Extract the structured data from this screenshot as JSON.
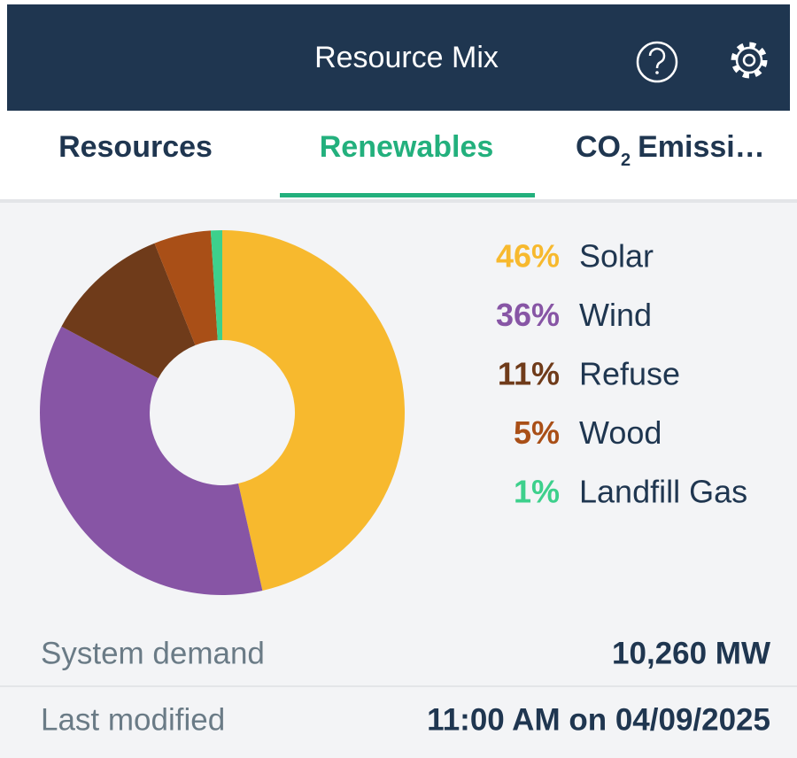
{
  "header": {
    "title": "Resource Mix"
  },
  "tabs": [
    {
      "label": "Resources"
    },
    {
      "label": "Renewables"
    },
    {
      "label": "CO",
      "sub": "2",
      "rest": "Emissi…"
    }
  ],
  "chart_data": {
    "type": "pie",
    "donut": true,
    "categories": [
      "Solar",
      "Wind",
      "Refuse",
      "Wood",
      "Landfill Gas"
    ],
    "values": [
      46,
      36,
      11,
      5,
      1
    ],
    "value_labels": [
      "46%",
      "36%",
      "11%",
      "5%",
      "1%"
    ],
    "colors": [
      "#f7b92e",
      "#8755a5",
      "#6f3b1a",
      "#a94f17",
      "#3dd08c"
    ]
  },
  "rows": [
    {
      "label": "System demand",
      "value": "10,260 MW"
    },
    {
      "label": "Last modified",
      "value": "11:00 AM on 04/09/2025"
    }
  ]
}
